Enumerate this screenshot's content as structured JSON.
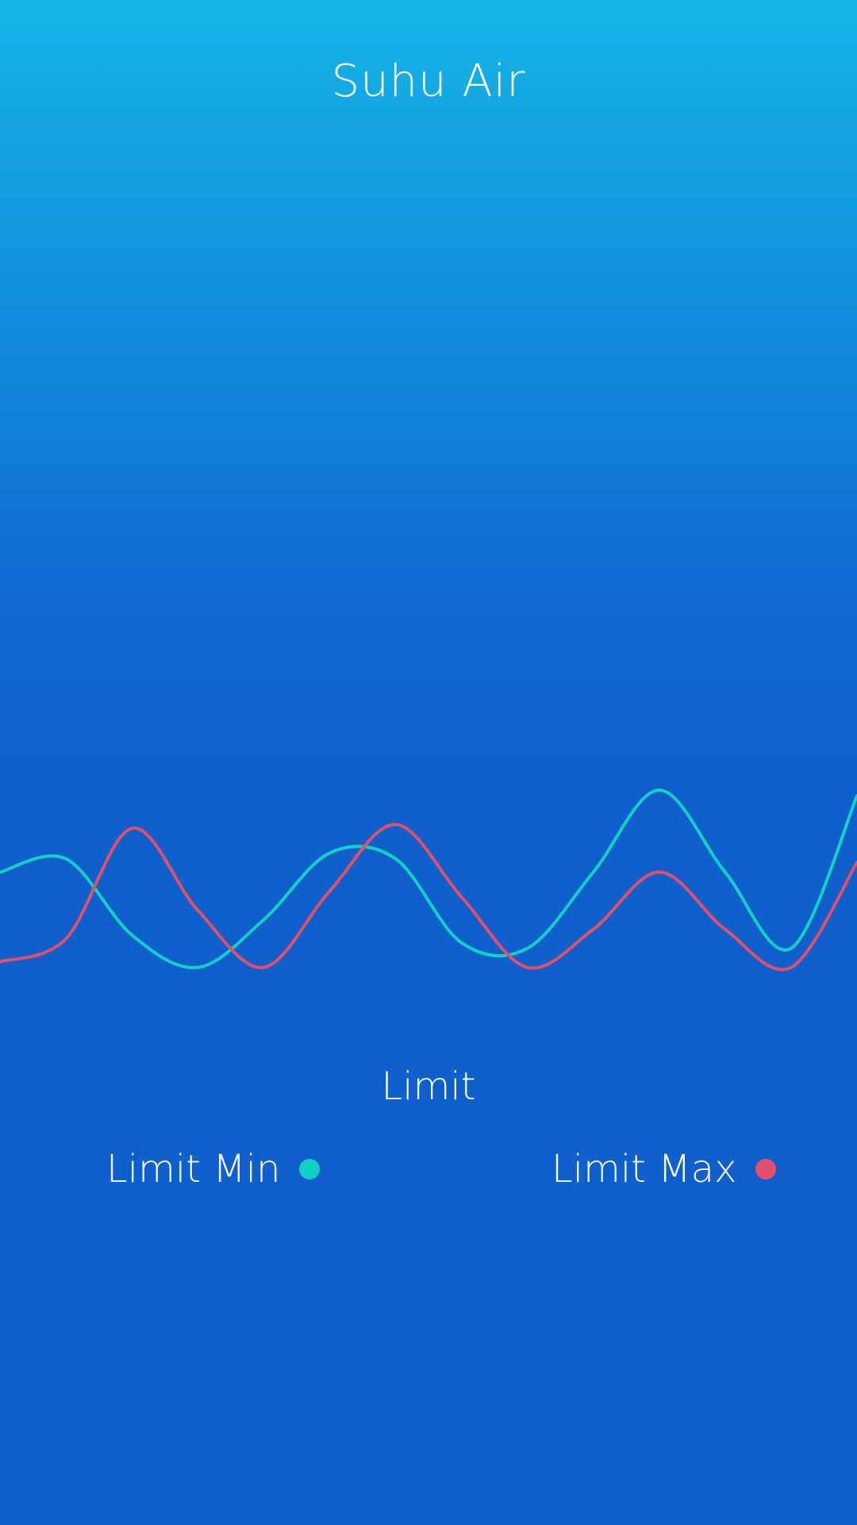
{
  "header": {
    "title": "Suhu Air"
  },
  "legend": {
    "title": "Limit",
    "min_label": "Limit Min",
    "max_label": "Limit Max"
  },
  "colors": {
    "min_series": "#12d1c4",
    "max_series": "#e0506a"
  },
  "chart_data": {
    "type": "line",
    "x": [
      0,
      1,
      2,
      3,
      4,
      5,
      6,
      7,
      8,
      9,
      10,
      11,
      12,
      13
    ],
    "series": [
      {
        "name": "Limit Min",
        "values": [
          0.55,
          0.62,
          0.22,
          0.05,
          0.3,
          0.65,
          0.62,
          0.18,
          0.15,
          0.55,
          0.98,
          0.55,
          0.15,
          0.95
        ]
      },
      {
        "name": "Limit Max",
        "values": [
          0.08,
          0.2,
          0.78,
          0.35,
          0.05,
          0.45,
          0.8,
          0.42,
          0.05,
          0.25,
          0.55,
          0.25,
          0.05,
          0.6
        ]
      }
    ],
    "ylim": [
      0,
      1
    ],
    "grid": false,
    "legend_position": "bottom"
  }
}
